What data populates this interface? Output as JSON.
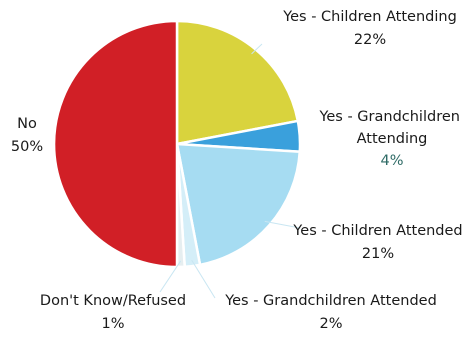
{
  "chart_data": {
    "type": "pie",
    "title": "",
    "start_angle_deg": 0,
    "direction": "clockwise",
    "slices": [
      {
        "label": "Yes - Children Attending",
        "value": 22,
        "value_label": "22%",
        "color": "#d9d33d"
      },
      {
        "label": "Yes - Grandchildren Attending",
        "value": 4,
        "value_label": "4%",
        "color": "#3aa0dc"
      },
      {
        "label": "Yes - Children Attended",
        "value": 21,
        "value_label": "21%",
        "color": "#a6dcf2"
      },
      {
        "label": "Yes - Grandchildren Attended",
        "value": 2,
        "value_label": "2%",
        "color": "#d4eef8"
      },
      {
        "label": "Don't Know/Refused",
        "value": 1,
        "value_label": "1%",
        "color": "#e6eef0"
      },
      {
        "label": "No",
        "value": 50,
        "value_label": "50%",
        "color": "#d11f26"
      }
    ]
  }
}
